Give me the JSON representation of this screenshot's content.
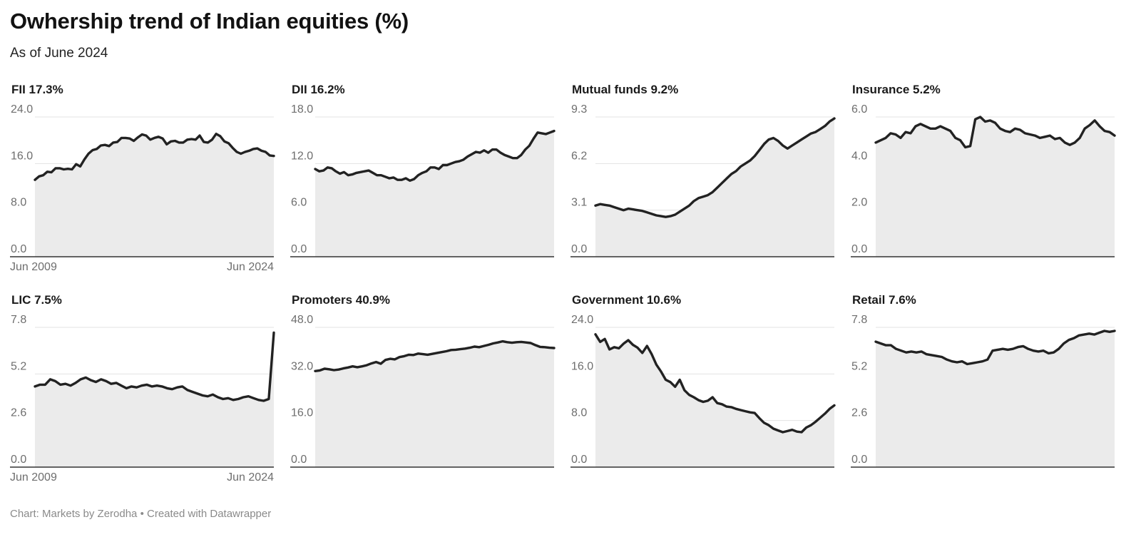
{
  "title": "Owhership trend of Indian equities (%)",
  "subtitle": "As of June 2024",
  "footer": "Chart: Markets by Zerodha • Created with Datawrapper",
  "x_axis_labels": [
    "Jun 2009",
    "Jun 2024"
  ],
  "colors": {
    "line": "#222222",
    "area": "#ebebeb",
    "grid": "#e3e3e3",
    "axis": "#333333",
    "tick": "#6e6e6e"
  },
  "chart_data": [
    {
      "type": "area",
      "panel_title": "FII 17.3%",
      "series_name": "FII",
      "latest": 17.3,
      "x_range": [
        "Jun 2009",
        "Jun 2024"
      ],
      "ylim": [
        0,
        24
      ],
      "yticks": [
        "0.0",
        "8.0",
        "16.0",
        "24.0"
      ],
      "show_x_labels": true,
      "values": [
        13.2,
        13.8,
        14.0,
        14.6,
        14.5,
        15.2,
        15.2,
        15.0,
        15.1,
        15.0,
        15.9,
        15.5,
        16.7,
        17.7,
        18.3,
        18.5,
        19.1,
        19.2,
        19.0,
        19.6,
        19.7,
        20.4,
        20.4,
        20.3,
        19.9,
        20.5,
        21.0,
        20.8,
        20.1,
        20.4,
        20.6,
        20.3,
        19.3,
        19.8,
        19.9,
        19.6,
        19.6,
        20.1,
        20.2,
        20.1,
        20.8,
        19.7,
        19.6,
        20.1,
        21.1,
        20.7,
        19.8,
        19.5,
        18.7,
        18.0,
        17.7,
        18.0,
        18.2,
        18.5,
        18.6,
        18.2,
        18.0,
        17.4,
        17.3
      ]
    },
    {
      "type": "area",
      "panel_title": "DII 16.2%",
      "series_name": "DII",
      "latest": 16.2,
      "x_range": [
        "Jun 2009",
        "Jun 2024"
      ],
      "ylim": [
        0,
        18
      ],
      "yticks": [
        "0.0",
        "6.0",
        "12.0",
        "18.0"
      ],
      "show_x_labels": false,
      "values": [
        11.3,
        11.0,
        11.1,
        11.5,
        11.4,
        11.0,
        10.7,
        10.9,
        10.5,
        10.6,
        10.8,
        10.9,
        11.0,
        11.1,
        10.8,
        10.5,
        10.5,
        10.3,
        10.1,
        10.2,
        9.9,
        9.9,
        10.1,
        9.8,
        10.0,
        10.5,
        10.8,
        11.0,
        11.5,
        11.5,
        11.3,
        11.8,
        11.8,
        12.0,
        12.2,
        12.3,
        12.5,
        12.9,
        13.2,
        13.5,
        13.4,
        13.7,
        13.4,
        13.8,
        13.8,
        13.4,
        13.1,
        12.9,
        12.7,
        12.7,
        13.1,
        13.8,
        14.3,
        15.2,
        16.0,
        15.9,
        15.8,
        16.0,
        16.2
      ]
    },
    {
      "type": "area",
      "panel_title": "Mutual funds 9.2%",
      "series_name": "Mutual funds",
      "latest": 9.2,
      "x_range": [
        "Jun 2009",
        "Jun 2024"
      ],
      "ylim": [
        0,
        9.3
      ],
      "yticks": [
        "0.0",
        "3.1",
        "6.2",
        "9.3"
      ],
      "show_x_labels": false,
      "values": [
        3.4,
        3.5,
        3.45,
        3.4,
        3.3,
        3.2,
        3.1,
        3.2,
        3.15,
        3.1,
        3.05,
        2.95,
        2.85,
        2.75,
        2.7,
        2.65,
        2.7,
        2.8,
        3.0,
        3.2,
        3.4,
        3.7,
        3.9,
        4.0,
        4.1,
        4.3,
        4.6,
        4.9,
        5.2,
        5.5,
        5.7,
        6.0,
        6.2,
        6.4,
        6.7,
        7.1,
        7.5,
        7.8,
        7.9,
        7.7,
        7.4,
        7.2,
        7.4,
        7.6,
        7.8,
        8.0,
        8.2,
        8.3,
        8.5,
        8.7,
        9.0,
        9.2
      ]
    },
    {
      "type": "area",
      "panel_title": "Insurance 5.2%",
      "series_name": "Insurance",
      "latest": 5.2,
      "x_range": [
        "Jun 2009",
        "Jun 2024"
      ],
      "ylim": [
        0,
        6
      ],
      "yticks": [
        "0.0",
        "2.0",
        "4.0",
        "6.0"
      ],
      "show_x_labels": false,
      "values": [
        4.9,
        5.0,
        5.1,
        5.3,
        5.25,
        5.1,
        5.35,
        5.3,
        5.6,
        5.7,
        5.6,
        5.5,
        5.5,
        5.6,
        5.5,
        5.4,
        5.1,
        5.0,
        4.7,
        4.75,
        5.9,
        6.0,
        5.8,
        5.85,
        5.75,
        5.5,
        5.4,
        5.35,
        5.5,
        5.45,
        5.3,
        5.25,
        5.2,
        5.1,
        5.15,
        5.2,
        5.05,
        5.1,
        4.9,
        4.8,
        4.9,
        5.1,
        5.5,
        5.65,
        5.85,
        5.6,
        5.4,
        5.35,
        5.2
      ]
    },
    {
      "type": "area",
      "panel_title": "LIC 7.5%",
      "series_name": "LIC",
      "latest": 7.5,
      "x_range": [
        "Jun 2009",
        "Jun 2024"
      ],
      "ylim": [
        0,
        7.8
      ],
      "yticks": [
        "0.0",
        "2.6",
        "5.2",
        "7.8"
      ],
      "show_x_labels": true,
      "values": [
        4.5,
        4.6,
        4.6,
        4.9,
        4.8,
        4.6,
        4.65,
        4.55,
        4.7,
        4.9,
        5.0,
        4.85,
        4.75,
        4.9,
        4.8,
        4.65,
        4.7,
        4.55,
        4.4,
        4.5,
        4.45,
        4.55,
        4.6,
        4.5,
        4.55,
        4.5,
        4.4,
        4.35,
        4.45,
        4.5,
        4.3,
        4.2,
        4.1,
        4.0,
        3.95,
        4.05,
        3.9,
        3.8,
        3.85,
        3.75,
        3.8,
        3.9,
        3.95,
        3.85,
        3.75,
        3.7,
        3.8,
        7.5
      ]
    },
    {
      "type": "area",
      "panel_title": "Promoters 40.9%",
      "series_name": "Promoters",
      "latest": 40.9,
      "x_range": [
        "Jun 2009",
        "Jun 2024"
      ],
      "ylim": [
        0,
        48
      ],
      "yticks": [
        "0.0",
        "16.0",
        "32.0",
        "48.0"
      ],
      "show_x_labels": false,
      "values": [
        33.0,
        33.2,
        33.8,
        33.6,
        33.3,
        33.5,
        33.9,
        34.2,
        34.6,
        34.3,
        34.6,
        35.0,
        35.6,
        36.1,
        35.5,
        36.8,
        37.2,
        37.0,
        37.8,
        38.1,
        38.6,
        38.5,
        39.0,
        38.8,
        38.6,
        38.9,
        39.2,
        39.5,
        39.8,
        40.2,
        40.3,
        40.5,
        40.7,
        41.0,
        41.4,
        41.2,
        41.6,
        42.0,
        42.5,
        42.8,
        43.2,
        42.9,
        42.7,
        42.9,
        43.0,
        42.8,
        42.6,
        41.9,
        41.3,
        41.2,
        41.0,
        40.9
      ]
    },
    {
      "type": "area",
      "panel_title": "Government 10.6%",
      "series_name": "Government",
      "latest": 10.6,
      "x_range": [
        "Jun 2009",
        "Jun 2024"
      ],
      "ylim": [
        0,
        24
      ],
      "yticks": [
        "0.0",
        "8.0",
        "16.0",
        "24.0"
      ],
      "show_x_labels": false,
      "values": [
        22.8,
        21.5,
        22.0,
        20.2,
        20.6,
        20.4,
        21.2,
        21.8,
        21.0,
        20.5,
        19.6,
        20.8,
        19.4,
        17.6,
        16.4,
        15.0,
        14.6,
        13.8,
        15.0,
        13.2,
        12.4,
        12.0,
        11.5,
        11.2,
        11.4,
        12.0,
        11.0,
        10.8,
        10.4,
        10.3,
        10.0,
        9.8,
        9.6,
        9.4,
        9.3,
        8.4,
        7.6,
        7.2,
        6.6,
        6.3,
        6.0,
        6.2,
        6.4,
        6.1,
        6.0,
        6.8,
        7.2,
        7.8,
        8.5,
        9.2,
        10.0,
        10.6
      ]
    },
    {
      "type": "area",
      "panel_title": "Retail 7.6%",
      "series_name": "Retail",
      "latest": 7.6,
      "x_range": [
        "Jun 2009",
        "Jun 2024"
      ],
      "ylim": [
        0,
        7.8
      ],
      "yticks": [
        "0.0",
        "2.6",
        "5.2",
        "7.8"
      ],
      "show_x_labels": false,
      "values": [
        7.0,
        6.9,
        6.8,
        6.8,
        6.6,
        6.5,
        6.4,
        6.45,
        6.4,
        6.45,
        6.3,
        6.25,
        6.2,
        6.15,
        6.0,
        5.9,
        5.85,
        5.9,
        5.75,
        5.8,
        5.85,
        5.9,
        6.0,
        6.5,
        6.55,
        6.6,
        6.55,
        6.6,
        6.7,
        6.75,
        6.6,
        6.5,
        6.45,
        6.5,
        6.35,
        6.4,
        6.6,
        6.9,
        7.1,
        7.2,
        7.35,
        7.4,
        7.45,
        7.4,
        7.5,
        7.6,
        7.55,
        7.6
      ]
    }
  ]
}
